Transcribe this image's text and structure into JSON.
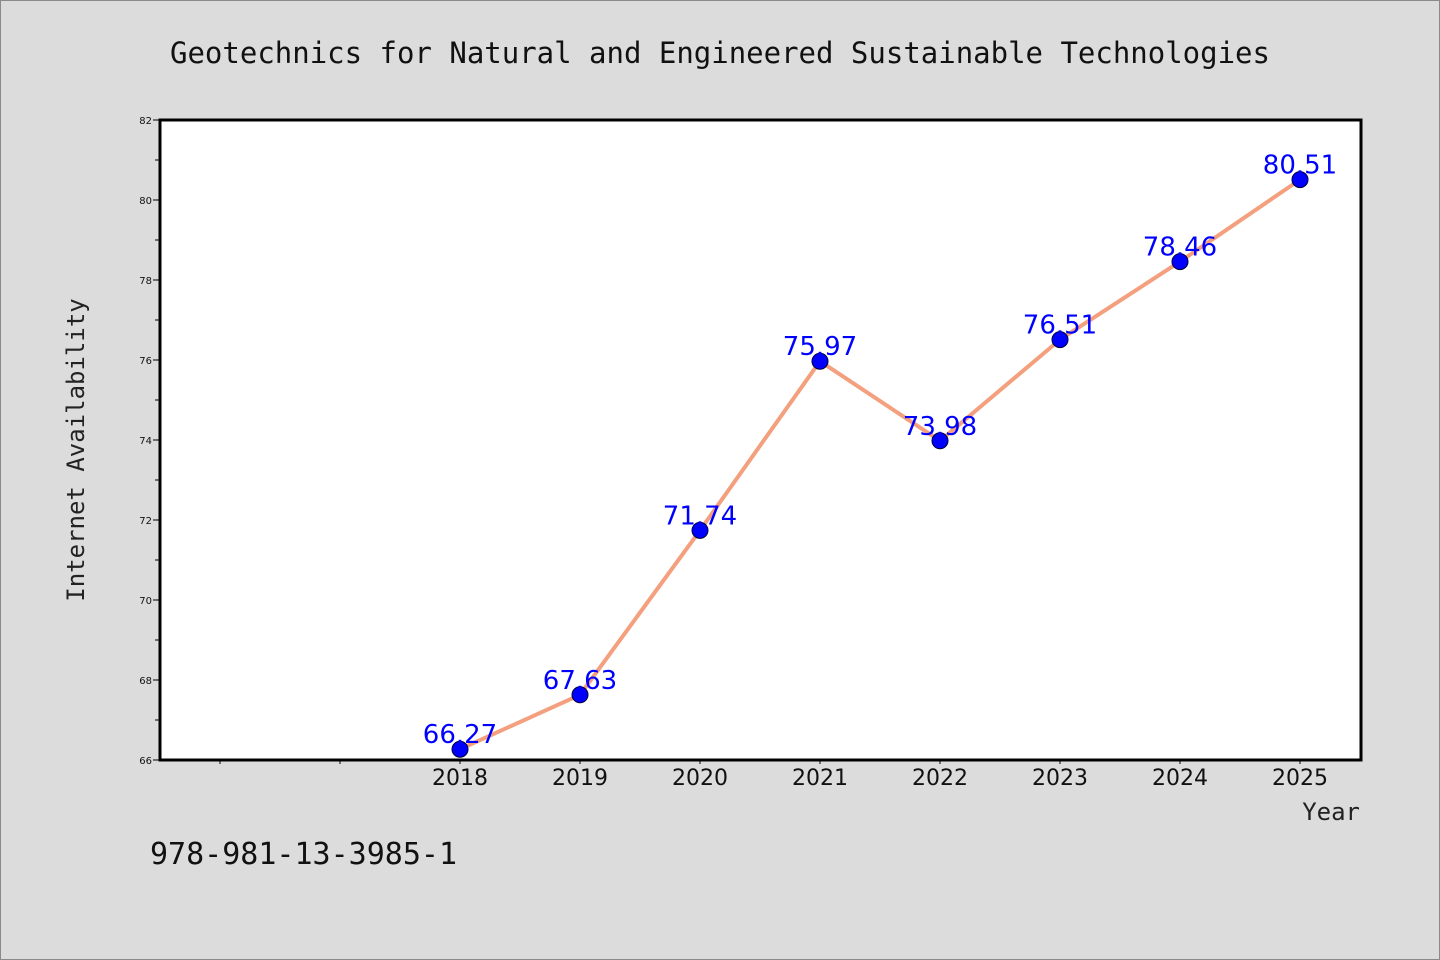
{
  "chart_data": {
    "type": "line",
    "title": "Geotechnics for Natural and Engineered Sustainable Technologies",
    "xlabel": "Year",
    "ylabel": "Internet Availability",
    "x": [
      "2018",
      "2019",
      "2020",
      "2021",
      "2022",
      "2023",
      "2024",
      "2025"
    ],
    "series": [
      {
        "values": [
          66.27,
          67.63,
          71.74,
          75.97,
          73.98,
          76.51,
          78.46,
          80.51
        ],
        "labels": [
          "66.27",
          "67.63",
          "71.74",
          "75.97",
          "73.98",
          "76.51",
          "78.46",
          "80.51"
        ],
        "line_color": "#f4a07e",
        "marker_color": "#0000ff"
      }
    ],
    "ylim": [
      66,
      82
    ],
    "yticks": [
      "66",
      "68",
      "70",
      "72",
      "74",
      "76",
      "78",
      "80",
      "82"
    ],
    "grid": false,
    "legend": "none"
  },
  "footer": {
    "isbn": "978-981-13-3985-1"
  }
}
